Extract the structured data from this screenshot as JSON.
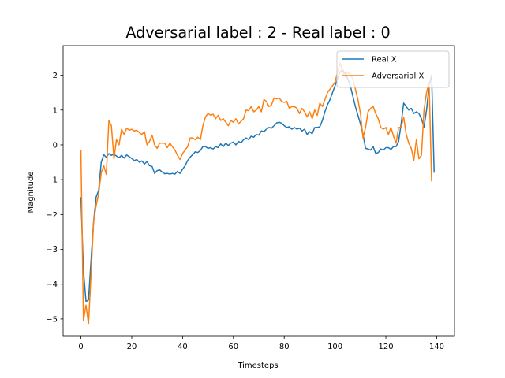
{
  "chart_data": {
    "type": "line",
    "title": "Adversarial label : 2 - Real label : 0",
    "xlabel": "Timesteps",
    "ylabel": "Magnitude",
    "xlim": [
      -7,
      147
    ],
    "ylim": [
      -5.5,
      2.85
    ],
    "xticks": [
      0,
      20,
      40,
      60,
      80,
      100,
      120,
      140
    ],
    "yticks": [
      -5,
      -4,
      -3,
      -2,
      -1,
      0,
      1,
      2
    ],
    "ytick_labels": [
      "−5",
      "−4",
      "−3",
      "−2",
      "−1",
      "0",
      "1",
      "2"
    ],
    "grid": false,
    "legend_placement": "top-right",
    "series": [
      {
        "name": "Real X",
        "color": "#1f77b4",
        "points": [
          [
            0,
            -1.5
          ],
          [
            1,
            -3.6
          ],
          [
            2,
            -4.5
          ],
          [
            3,
            -4.45
          ],
          [
            4,
            -3.3
          ],
          [
            5,
            -2.2
          ],
          [
            6,
            -1.5
          ],
          [
            7,
            -1.3
          ],
          [
            8,
            -0.5
          ],
          [
            9,
            -0.28
          ],
          [
            10,
            -0.36
          ],
          [
            11,
            -0.25
          ],
          [
            12,
            -0.3
          ],
          [
            13,
            -0.27
          ],
          [
            14,
            -0.32
          ],
          [
            15,
            -0.37
          ],
          [
            16,
            -0.3
          ],
          [
            17,
            -0.38
          ],
          [
            18,
            -0.29
          ],
          [
            19,
            -0.34
          ],
          [
            20,
            -0.39
          ],
          [
            21,
            -0.45
          ],
          [
            22,
            -0.42
          ],
          [
            23,
            -0.5
          ],
          [
            24,
            -0.46
          ],
          [
            25,
            -0.55
          ],
          [
            26,
            -0.48
          ],
          [
            27,
            -0.6
          ],
          [
            28,
            -0.62
          ],
          [
            29,
            -0.82
          ],
          [
            30,
            -0.74
          ],
          [
            31,
            -0.72
          ],
          [
            32,
            -0.78
          ],
          [
            33,
            -0.83
          ],
          [
            34,
            -0.82
          ],
          [
            35,
            -0.84
          ],
          [
            36,
            -0.82
          ],
          [
            37,
            -0.84
          ],
          [
            38,
            -0.76
          ],
          [
            39,
            -0.82
          ],
          [
            40,
            -0.7
          ],
          [
            41,
            -0.6
          ],
          [
            42,
            -0.45
          ],
          [
            43,
            -0.35
          ],
          [
            44,
            -0.28
          ],
          [
            45,
            -0.2
          ],
          [
            46,
            -0.22
          ],
          [
            47,
            -0.16
          ],
          [
            48,
            -0.05
          ],
          [
            49,
            -0.05
          ],
          [
            50,
            -0.1
          ],
          [
            51,
            -0.08
          ],
          [
            52,
            -0.12
          ],
          [
            53,
            -0.05
          ],
          [
            54,
            -0.08
          ],
          [
            55,
            0.03
          ],
          [
            56,
            -0.05
          ],
          [
            57,
            0.05
          ],
          [
            58,
            -0.02
          ],
          [
            59,
            0.05
          ],
          [
            60,
            0.08
          ],
          [
            61,
            0.0
          ],
          [
            62,
            0.1
          ],
          [
            63,
            0.06
          ],
          [
            64,
            0.15
          ],
          [
            65,
            0.2
          ],
          [
            66,
            0.15
          ],
          [
            67,
            0.25
          ],
          [
            68,
            0.22
          ],
          [
            69,
            0.3
          ],
          [
            70,
            0.28
          ],
          [
            71,
            0.4
          ],
          [
            72,
            0.38
          ],
          [
            73,
            0.45
          ],
          [
            74,
            0.5
          ],
          [
            75,
            0.48
          ],
          [
            76,
            0.55
          ],
          [
            77,
            0.63
          ],
          [
            78,
            0.65
          ],
          [
            79,
            0.62
          ],
          [
            80,
            0.55
          ],
          [
            81,
            0.5
          ],
          [
            82,
            0.52
          ],
          [
            83,
            0.45
          ],
          [
            84,
            0.5
          ],
          [
            85,
            0.45
          ],
          [
            86,
            0.48
          ],
          [
            87,
            0.4
          ],
          [
            88,
            0.45
          ],
          [
            89,
            0.3
          ],
          [
            90,
            0.38
          ],
          [
            91,
            0.32
          ],
          [
            92,
            0.5
          ],
          [
            93,
            0.5
          ],
          [
            94,
            0.52
          ],
          [
            95,
            0.7
          ],
          [
            96,
            0.95
          ],
          [
            97,
            1.15
          ],
          [
            98,
            1.3
          ],
          [
            99,
            1.5
          ],
          [
            100,
            1.7
          ],
          [
            101,
            1.9
          ],
          [
            102,
            2.1
          ],
          [
            103,
            2.15
          ],
          [
            104,
            2.05
          ],
          [
            105,
            1.9
          ],
          [
            106,
            1.7
          ],
          [
            107,
            1.4
          ],
          [
            108,
            1.1
          ],
          [
            109,
            0.85
          ],
          [
            110,
            0.6
          ],
          [
            111,
            0.3
          ],
          [
            112,
            -0.1
          ],
          [
            113,
            -0.12
          ],
          [
            114,
            -0.15
          ],
          [
            115,
            -0.05
          ],
          [
            116,
            -0.25
          ],
          [
            117,
            -0.22
          ],
          [
            118,
            -0.12
          ],
          [
            119,
            -0.15
          ],
          [
            120,
            -0.08
          ],
          [
            121,
            -0.08
          ],
          [
            122,
            -0.13
          ],
          [
            123,
            -0.05
          ],
          [
            124,
            -0.05
          ],
          [
            125,
            0.1
          ],
          [
            126,
            0.6
          ],
          [
            127,
            1.2
          ],
          [
            128,
            1.1
          ],
          [
            129,
            1.0
          ],
          [
            130,
            1.05
          ],
          [
            131,
            0.9
          ],
          [
            132,
            0.95
          ],
          [
            133,
            0.9
          ],
          [
            134,
            0.75
          ],
          [
            135,
            0.5
          ],
          [
            136,
            1.0
          ],
          [
            137,
            1.7
          ],
          [
            138,
            2.0
          ],
          [
            139,
            -0.8
          ]
        ]
      },
      {
        "name": "Adversarial X",
        "color": "#ff7f0e",
        "points": [
          [
            0,
            -0.15
          ],
          [
            1,
            -5.05
          ],
          [
            2,
            -4.6
          ],
          [
            3,
            -5.15
          ],
          [
            4,
            -3.7
          ],
          [
            5,
            -2.2
          ],
          [
            6,
            -1.75
          ],
          [
            7,
            -1.4
          ],
          [
            8,
            -0.8
          ],
          [
            9,
            -0.6
          ],
          [
            10,
            -0.85
          ],
          [
            11,
            0.7
          ],
          [
            12,
            0.55
          ],
          [
            13,
            -0.4
          ],
          [
            14,
            0.15
          ],
          [
            15,
            0.0
          ],
          [
            16,
            0.45
          ],
          [
            17,
            0.3
          ],
          [
            18,
            0.48
          ],
          [
            19,
            0.42
          ],
          [
            20,
            0.45
          ],
          [
            21,
            0.4
          ],
          [
            22,
            0.42
          ],
          [
            23,
            0.35
          ],
          [
            24,
            0.3
          ],
          [
            25,
            0.38
          ],
          [
            26,
            0.0
          ],
          [
            27,
            0.1
          ],
          [
            28,
            0.28
          ],
          [
            29,
            0.0
          ],
          [
            30,
            -0.1
          ],
          [
            31,
            0.05
          ],
          [
            32,
            0.05
          ],
          [
            33,
            0.05
          ],
          [
            34,
            -0.08
          ],
          [
            35,
            0.05
          ],
          [
            36,
            -0.05
          ],
          [
            37,
            -0.15
          ],
          [
            38,
            -0.3
          ],
          [
            39,
            -0.42
          ],
          [
            40,
            -0.25
          ],
          [
            41,
            -0.15
          ],
          [
            42,
            -0.05
          ],
          [
            43,
            0.2
          ],
          [
            44,
            0.2
          ],
          [
            45,
            0.15
          ],
          [
            46,
            0.22
          ],
          [
            47,
            0.15
          ],
          [
            48,
            0.55
          ],
          [
            49,
            0.8
          ],
          [
            50,
            0.9
          ],
          [
            51,
            0.85
          ],
          [
            52,
            0.88
          ],
          [
            53,
            0.75
          ],
          [
            54,
            0.85
          ],
          [
            55,
            0.7
          ],
          [
            56,
            0.75
          ],
          [
            57,
            0.65
          ],
          [
            58,
            0.55
          ],
          [
            59,
            0.7
          ],
          [
            60,
            0.65
          ],
          [
            61,
            0.75
          ],
          [
            62,
            0.6
          ],
          [
            63,
            0.68
          ],
          [
            64,
            0.75
          ],
          [
            65,
            1.0
          ],
          [
            66,
            0.98
          ],
          [
            67,
            1.1
          ],
          [
            68,
            0.95
          ],
          [
            69,
            1.0
          ],
          [
            70,
            1.1
          ],
          [
            71,
            0.95
          ],
          [
            72,
            1.3
          ],
          [
            73,
            1.25
          ],
          [
            74,
            1.1
          ],
          [
            75,
            1.15
          ],
          [
            76,
            1.35
          ],
          [
            77,
            1.32
          ],
          [
            78,
            1.35
          ],
          [
            79,
            1.25
          ],
          [
            80,
            1.22
          ],
          [
            81,
            1.25
          ],
          [
            82,
            1.05
          ],
          [
            83,
            1.1
          ],
          [
            84,
            1.1
          ],
          [
            85,
            1.05
          ],
          [
            86,
            0.9
          ],
          [
            87,
            1.05
          ],
          [
            88,
            0.95
          ],
          [
            89,
            0.8
          ],
          [
            90,
            0.95
          ],
          [
            91,
            0.75
          ],
          [
            92,
            1.0
          ],
          [
            93,
            0.85
          ],
          [
            94,
            1.2
          ],
          [
            95,
            1.1
          ],
          [
            96,
            1.3
          ],
          [
            97,
            1.5
          ],
          [
            98,
            1.6
          ],
          [
            99,
            1.7
          ],
          [
            100,
            1.8
          ],
          [
            101,
            2.1
          ],
          [
            102,
            2.35
          ],
          [
            103,
            2.1
          ],
          [
            104,
            1.95
          ],
          [
            105,
            2.1
          ],
          [
            106,
            2.0
          ],
          [
            107,
            1.9
          ],
          [
            108,
            1.6
          ],
          [
            109,
            1.3
          ],
          [
            110,
            0.9
          ],
          [
            111,
            0.2
          ],
          [
            112,
            0.5
          ],
          [
            113,
            0.95
          ],
          [
            114,
            1.05
          ],
          [
            115,
            1.1
          ],
          [
            116,
            0.9
          ],
          [
            117,
            0.75
          ],
          [
            118,
            0.5
          ],
          [
            119,
            0.45
          ],
          [
            120,
            0.5
          ],
          [
            121,
            0.3
          ],
          [
            122,
            0.5
          ],
          [
            123,
            0.25
          ],
          [
            124,
            0.05
          ],
          [
            125,
            0.5
          ],
          [
            126,
            0.5
          ],
          [
            127,
            0.8
          ],
          [
            128,
            0.3
          ],
          [
            129,
            0.05
          ],
          [
            130,
            -0.1
          ],
          [
            131,
            -0.45
          ],
          [
            132,
            0.15
          ],
          [
            133,
            -0.4
          ],
          [
            134,
            -0.3
          ],
          [
            135,
            1.0
          ],
          [
            136,
            1.5
          ],
          [
            137,
            1.8
          ],
          [
            138,
            -1.05
          ]
        ]
      }
    ]
  }
}
